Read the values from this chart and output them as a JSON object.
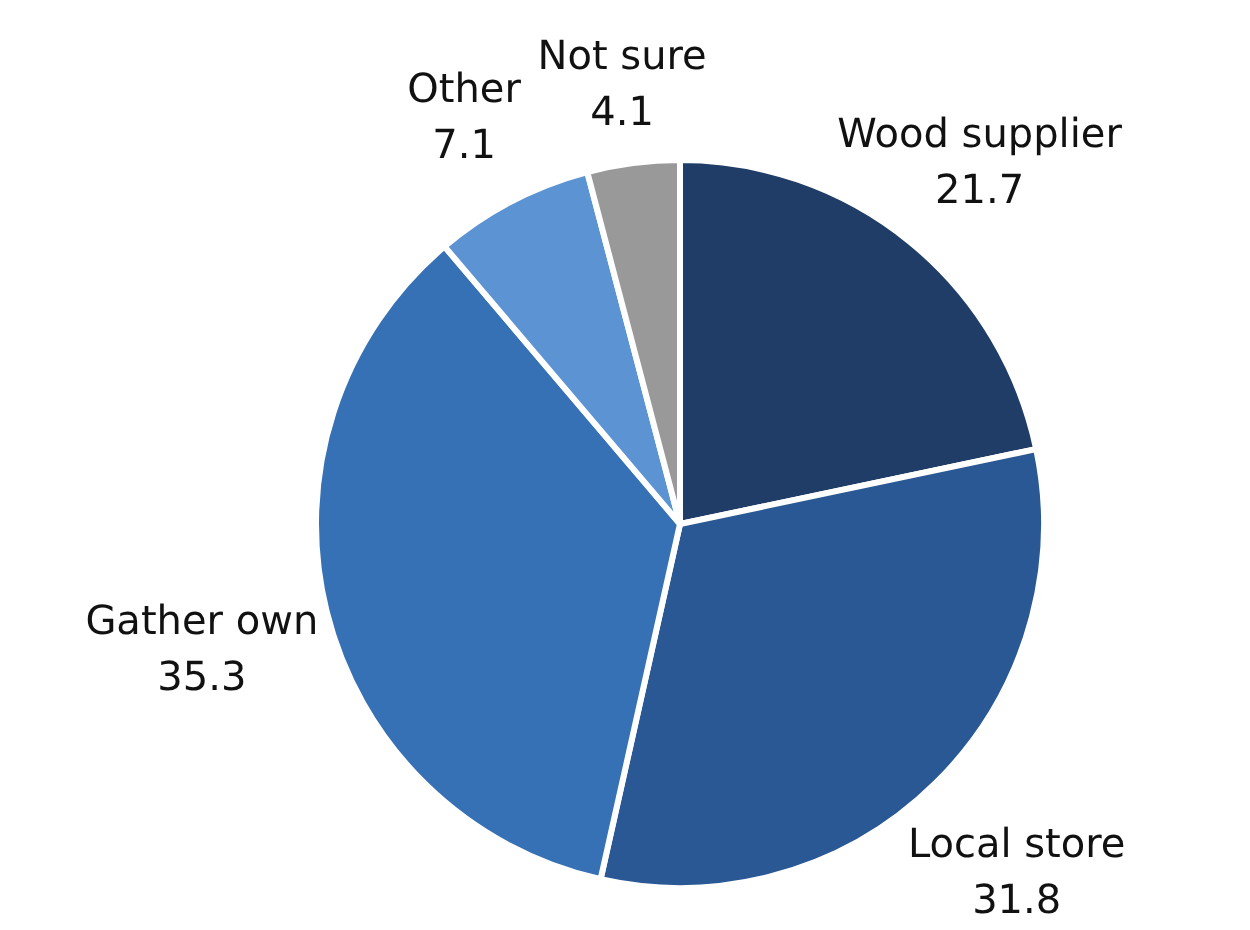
{
  "chart_data": {
    "type": "pie",
    "categories": [
      "Wood supplier",
      "Local store",
      "Gather own",
      "Other",
      "Not sure"
    ],
    "values": [
      21.7,
      31.8,
      35.3,
      7.1,
      4.1
    ],
    "colors": [
      "#1f3d66",
      "#2a5894",
      "#3771b5",
      "#5b93d3",
      "#999999"
    ],
    "data_labels": true
  }
}
